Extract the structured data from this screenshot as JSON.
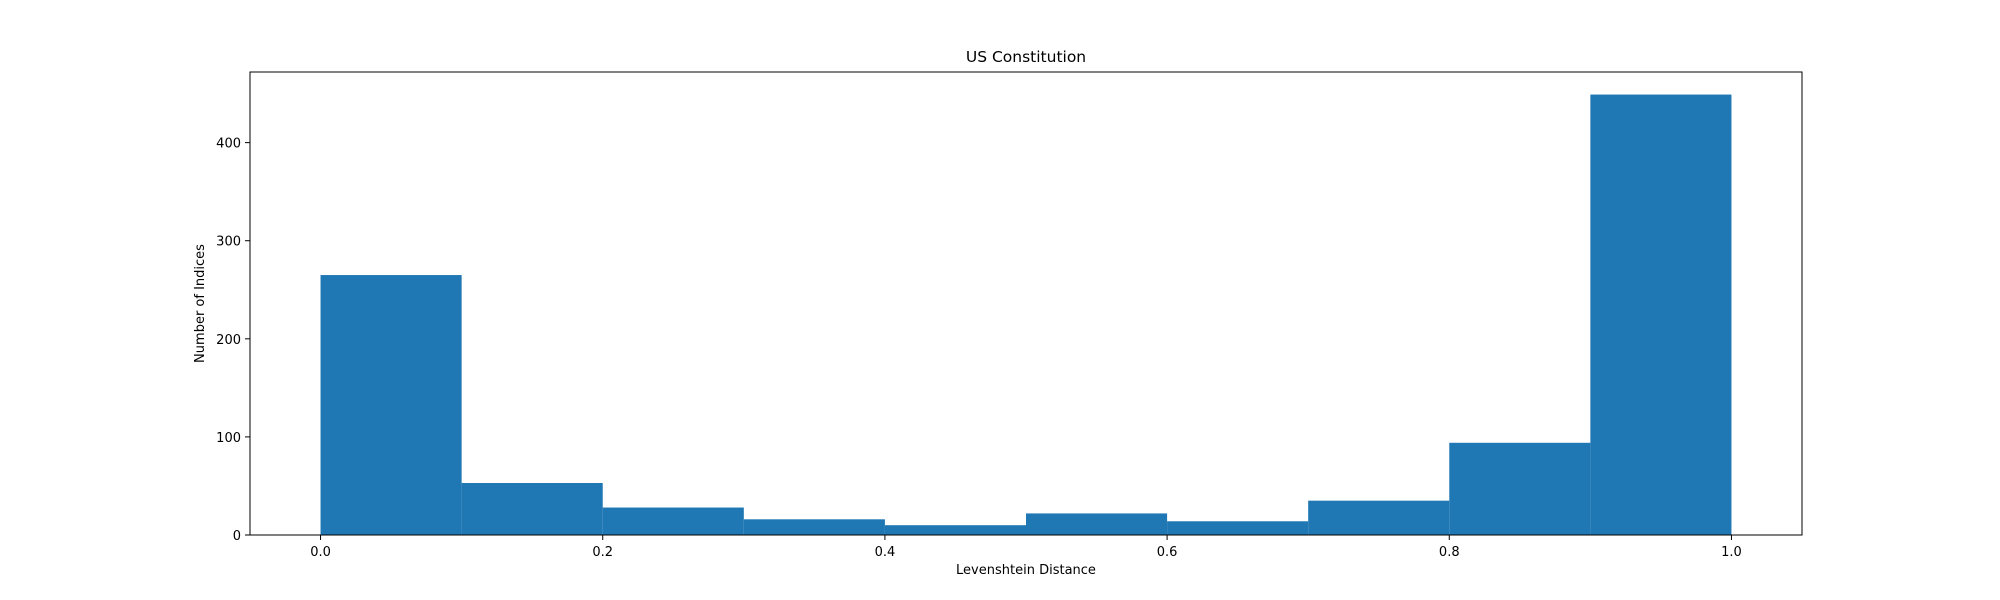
{
  "chart_data": {
    "type": "bar",
    "title": "US Constitution",
    "xlabel": "Levenshtein Distance",
    "ylabel": "Number of Indices",
    "bin_edges": [
      0.0,
      0.1,
      0.2,
      0.3,
      0.4,
      0.5,
      0.6,
      0.7,
      0.8,
      0.9,
      1.0
    ],
    "values": [
      265,
      53,
      28,
      16,
      10,
      22,
      14,
      35,
      94,
      449
    ],
    "xlim": [
      -0.05,
      1.05
    ],
    "ylim": [
      0,
      472
    ],
    "x_ticks": [
      0.0,
      0.2,
      0.4,
      0.6,
      0.8,
      1.0
    ],
    "x_tick_labels": [
      "0.0",
      "0.2",
      "0.4",
      "0.6",
      "0.8",
      "1.0"
    ],
    "y_ticks": [
      0,
      100,
      200,
      300,
      400
    ],
    "y_tick_labels": [
      "0",
      "100",
      "200",
      "300",
      "400"
    ],
    "bar_color": "#1f77b4",
    "grid": false,
    "legend": "none"
  }
}
